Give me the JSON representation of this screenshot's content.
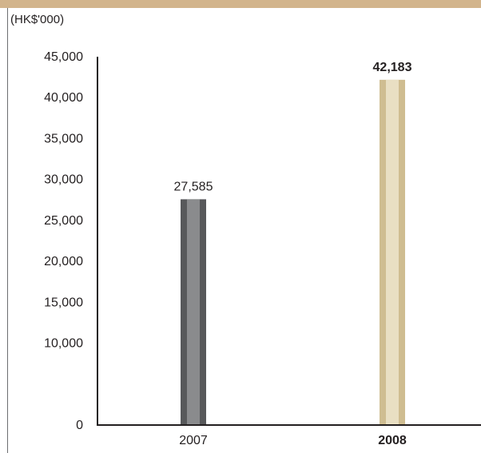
{
  "header": {
    "color": "#d2b48c"
  },
  "chart_data": {
    "type": "bar",
    "title": "",
    "unit_label": "(HK$'000)",
    "xlabel": "",
    "ylabel": "",
    "categories": [
      "2007",
      "2008"
    ],
    "values": [
      27585,
      42183
    ],
    "value_labels": [
      "27,585",
      "42,183"
    ],
    "emphasized_category": "2008",
    "ylim": [
      0,
      45000
    ],
    "yticks": [
      0,
      10000,
      15000,
      20000,
      25000,
      30000,
      35000,
      40000,
      45000
    ],
    "ytick_labels": [
      "0",
      "10,000",
      "15,000",
      "20,000",
      "25,000",
      "30,000",
      "35,000",
      "40,000",
      "45,000"
    ],
    "grid": false,
    "legend": "none",
    "bar_colors": [
      {
        "outer": "#58595b",
        "inner": "#8a8b8d"
      },
      {
        "outer": "#cfbd91",
        "inner": "#e9dfc3"
      }
    ],
    "axis_color": "#231f20"
  }
}
